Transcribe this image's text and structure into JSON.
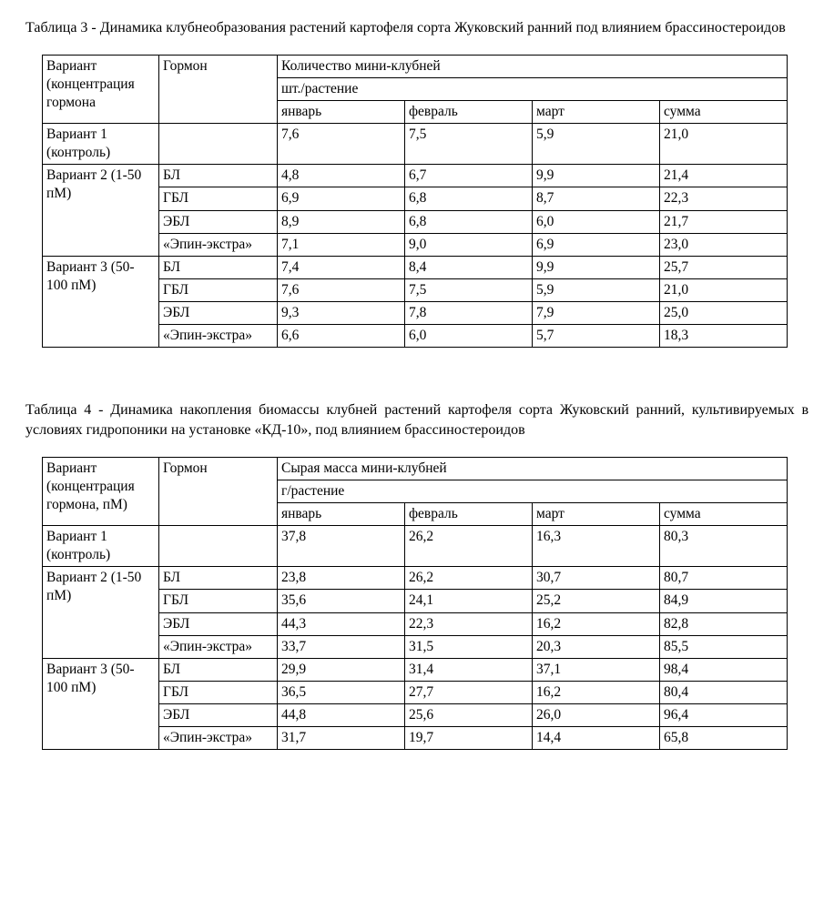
{
  "table3": {
    "caption": "Таблица 3 -  Динамика клубнеобразования растений картофеля сорта Жуковский ранний под влиянием брассиностероидов",
    "header": {
      "variant": "Вариант (концентрация гормона",
      "hormone": "Гормон",
      "top": "Количество мини-клубней",
      "unit": "шт./растение",
      "jan": "январь",
      "feb": "февраль",
      "mar": "март",
      "sum": "сумма"
    },
    "groups": [
      {
        "label": "Вариант 1 (контроль)",
        "rows": [
          {
            "hormone": "",
            "jan": "7,6",
            "feb": "7,5",
            "mar": "5,9",
            "sum": "21,0"
          }
        ]
      },
      {
        "label": "Вариант 2 (1-50 пМ)",
        "rows": [
          {
            "hormone": "БЛ",
            "jan": "4,8",
            "feb": "6,7",
            "mar": "9,9",
            "sum": "21,4"
          },
          {
            "hormone": "ГБЛ",
            "jan": "6,9",
            "feb": "6,8",
            "mar": "8,7",
            "sum": "22,3"
          },
          {
            "hormone": "ЭБЛ",
            "jan": "8,9",
            "feb": "6,8",
            "mar": "6,0",
            "sum": "21,7"
          },
          {
            "hormone": "«Эпин-экстра»",
            "jan": "7,1",
            "feb": "9,0",
            "mar": "6,9",
            "sum": "23,0"
          }
        ]
      },
      {
        "label": "Вариант 3 (50-100 пМ)",
        "rows": [
          {
            "hormone": "БЛ",
            "jan": "7,4",
            "feb": "8,4",
            "mar": "9,9",
            "sum": "25,7"
          },
          {
            "hormone": "ГБЛ",
            "jan": "7,6",
            "feb": "7,5",
            "mar": "5,9",
            "sum": "21,0"
          },
          {
            "hormone": "ЭБЛ",
            "jan": "9,3",
            "feb": "7,8",
            "mar": "7,9",
            "sum": "25,0"
          },
          {
            "hormone": "«Эпин-экстра»",
            "jan": "6,6",
            "feb": "6,0",
            "mar": "5,7",
            "sum": "18,3"
          }
        ]
      }
    ]
  },
  "table4": {
    "caption": "Таблица 4 - Динамика накопления биомассы клубней растений картофеля сорта Жуковский ранний, культивируемых в условиях гидропоники на установке «КД-10», под влиянием брассиностероидов",
    "header": {
      "variant": "Вариант (концентрация гормона, пМ)",
      "hormone": "Гормон",
      "top": "Сырая масса мини-клубней",
      "unit": "г/растение",
      "jan": "январь",
      "feb": "февраль",
      "mar": "март",
      "sum": "сумма"
    },
    "groups": [
      {
        "label": "Вариант 1 (контроль)",
        "rows": [
          {
            "hormone": "",
            "jan": "37,8",
            "feb": "26,2",
            "mar": "16,3",
            "sum": "80,3"
          }
        ]
      },
      {
        "label": "Вариант 2 (1-50 пМ)",
        "rows": [
          {
            "hormone": "БЛ",
            "jan": "23,8",
            "feb": "26,2",
            "mar": "30,7",
            "sum": "80,7"
          },
          {
            "hormone": "ГБЛ",
            "jan": "35,6",
            "feb": "24,1",
            "mar": "25,2",
            "sum": "84,9"
          },
          {
            "hormone": "ЭБЛ",
            "jan": "44,3",
            "feb": "22,3",
            "mar": "16,2",
            "sum": "82,8"
          },
          {
            "hormone": "«Эпин-экстра»",
            "jan": "33,7",
            "feb": "31,5",
            "mar": "20,3",
            "sum": "85,5"
          }
        ]
      },
      {
        "label": "Вариант 3 (50-100 пМ)",
        "rows": [
          {
            "hormone": "БЛ",
            "jan": "29,9",
            "feb": "31,4",
            "mar": "37,1",
            "sum": "98,4"
          },
          {
            "hormone": "ГБЛ",
            "jan": "36,5",
            "feb": "27,7",
            "mar": "16,2",
            "sum": "80,4"
          },
          {
            "hormone": "ЭБЛ",
            "jan": "44,8",
            "feb": "25,6",
            "mar": "26,0",
            "sum": "96,4"
          },
          {
            "hormone": "«Эпин-экстра»",
            "jan": "31,7",
            "feb": "19,7",
            "mar": "14,4",
            "sum": "65,8"
          }
        ]
      }
    ]
  },
  "style": {
    "background": "#ffffff",
    "text_color": "#000000",
    "border_color": "#000000",
    "font_family": "Times New Roman",
    "caption_fontsize": 16,
    "cell_fontsize": 15.5
  }
}
